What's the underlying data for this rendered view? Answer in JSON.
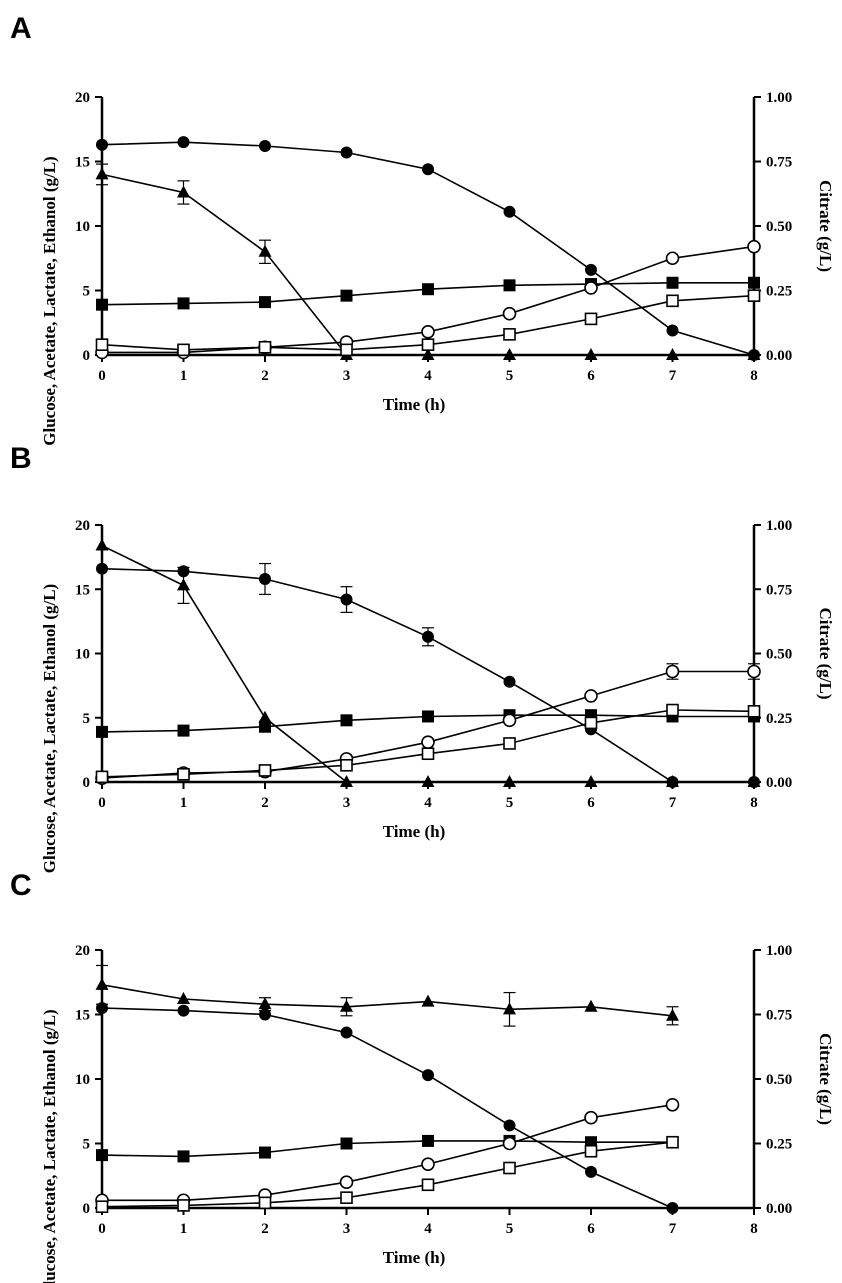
{
  "chart_data": [
    {
      "panel": "A",
      "type": "line",
      "xlabel": "Time (h)",
      "ylabel": "Glucose, Acetate, Lactate, Ethanol (g/L)",
      "y2label": "Citrate (g/L)",
      "xlim": [
        0,
        8
      ],
      "ylim": [
        0,
        20
      ],
      "y2lim": [
        0,
        1
      ],
      "xticks": [
        "0",
        "1",
        "2",
        "3",
        "4",
        "5",
        "6",
        "7",
        "8"
      ],
      "yticks": [
        "0",
        "5",
        "10",
        "15",
        "20"
      ],
      "y2ticks": [
        "0.00",
        "0.25",
        "0.50",
        "0.75",
        "1.00"
      ],
      "series": [
        {
          "marker": "filled-circle",
          "axis": "left",
          "x": [
            0,
            1,
            2,
            3,
            4,
            5,
            6,
            7,
            8
          ],
          "values": [
            16.3,
            16.5,
            16.2,
            15.7,
            14.4,
            11.1,
            6.6,
            1.9,
            0.0
          ],
          "err": [
            0,
            0,
            0,
            0,
            0,
            0,
            0,
            0,
            0
          ]
        },
        {
          "marker": "filled-triangle",
          "axis": "left",
          "x": [
            0,
            1,
            2,
            3,
            4,
            5,
            6,
            7,
            8
          ],
          "values": [
            14.0,
            12.6,
            8.0,
            0.0,
            0.0,
            0.0,
            0.0,
            0.0,
            0.0
          ],
          "err": [
            0.8,
            0.9,
            0.9,
            0,
            0,
            0,
            0,
            0,
            0
          ]
        },
        {
          "marker": "filled-square",
          "axis": "left",
          "x": [
            0,
            1,
            2,
            3,
            4,
            5,
            6,
            7,
            8
          ],
          "values": [
            3.9,
            4.0,
            4.1,
            4.6,
            5.1,
            5.4,
            5.5,
            5.6,
            5.6
          ],
          "err": [
            0,
            0,
            0,
            0,
            0,
            0,
            0,
            0,
            0
          ]
        },
        {
          "marker": "open-circle",
          "axis": "right",
          "x": [
            0,
            1,
            2,
            3,
            4,
            5,
            6,
            7,
            8
          ],
          "values": [
            0.01,
            0.01,
            0.03,
            0.05,
            0.09,
            0.16,
            0.26,
            0.375,
            0.42
          ],
          "err": [
            0,
            0,
            0,
            0,
            0,
            0,
            0,
            0,
            0
          ]
        },
        {
          "marker": "open-square",
          "axis": "right",
          "x": [
            0,
            1,
            2,
            3,
            4,
            5,
            6,
            7,
            8
          ],
          "values": [
            0.04,
            0.02,
            0.03,
            0.02,
            0.04,
            0.08,
            0.14,
            0.21,
            0.23
          ],
          "err": [
            0,
            0,
            0,
            0,
            0,
            0,
            0,
            0,
            0
          ]
        }
      ]
    },
    {
      "panel": "B",
      "type": "line",
      "xlabel": "Time (h)",
      "ylabel": "Glucose, Acetate, Lactate, Ethanol (g/L)",
      "y2label": "Citrate (g/L)",
      "xlim": [
        0,
        8
      ],
      "ylim": [
        0,
        20
      ],
      "y2lim": [
        0,
        1
      ],
      "xticks": [
        "0",
        "1",
        "2",
        "3",
        "4",
        "5",
        "6",
        "7",
        "8"
      ],
      "yticks": [
        "0",
        "5",
        "10",
        "15",
        "20"
      ],
      "y2ticks": [
        "0.00",
        "0.25",
        "0.50",
        "0.75",
        "1.00"
      ],
      "series": [
        {
          "marker": "filled-circle",
          "axis": "left",
          "x": [
            0,
            1,
            2,
            3,
            4,
            5,
            6,
            7,
            8
          ],
          "values": [
            16.6,
            16.4,
            15.8,
            14.2,
            11.3,
            7.8,
            4.1,
            0.0,
            0.0
          ],
          "err": [
            0,
            0,
            1.2,
            1.0,
            0.7,
            0,
            0,
            0,
            0
          ]
        },
        {
          "marker": "filled-triangle",
          "axis": "left",
          "x": [
            0,
            1,
            2,
            3,
            4,
            5,
            6,
            7,
            8
          ],
          "values": [
            18.4,
            15.3,
            5.0,
            0.0,
            0.0,
            0.0,
            0.0,
            0.0,
            0.0
          ],
          "err": [
            0,
            1.4,
            0,
            0,
            0,
            0,
            0,
            0,
            0
          ]
        },
        {
          "marker": "filled-square",
          "axis": "left",
          "x": [
            0,
            1,
            2,
            3,
            4,
            5,
            6,
            7,
            8
          ],
          "values": [
            3.9,
            4.0,
            4.3,
            4.8,
            5.1,
            5.2,
            5.2,
            5.1,
            5.1
          ],
          "err": [
            0,
            0,
            0,
            0,
            0,
            0,
            0,
            0,
            0
          ]
        },
        {
          "marker": "open-circle",
          "axis": "right",
          "x": [
            0,
            1,
            2,
            3,
            4,
            5,
            6,
            7,
            8
          ],
          "values": [
            0.015,
            0.035,
            0.04,
            0.09,
            0.155,
            0.24,
            0.335,
            0.43,
            0.43
          ],
          "err": [
            0,
            0,
            0,
            0,
            0,
            0,
            0,
            0.03,
            0.03
          ]
        },
        {
          "marker": "open-square",
          "axis": "right",
          "x": [
            0,
            1,
            2,
            3,
            4,
            5,
            6,
            7,
            8
          ],
          "values": [
            0.02,
            0.03,
            0.045,
            0.065,
            0.11,
            0.15,
            0.23,
            0.28,
            0.275
          ],
          "err": [
            0,
            0,
            0,
            0,
            0,
            0,
            0,
            0,
            0
          ]
        }
      ]
    },
    {
      "panel": "C",
      "type": "line",
      "xlabel": "Time (h)",
      "ylabel": "Glucose, Acetate, Lactate, Ethanol (g/L)",
      "y2label": "Citrate (g/L)",
      "xlim": [
        0,
        8
      ],
      "ylim": [
        0,
        20
      ],
      "y2lim": [
        0,
        1
      ],
      "xticks": [
        "0",
        "1",
        "2",
        "3",
        "4",
        "5",
        "6",
        "7",
        "8"
      ],
      "yticks": [
        "0",
        "5",
        "10",
        "15",
        "20"
      ],
      "y2ticks": [
        "0.00",
        "0.25",
        "0.50",
        "0.75",
        "1.00"
      ],
      "series": [
        {
          "marker": "filled-circle",
          "axis": "left",
          "x": [
            0,
            1,
            2,
            3,
            4,
            5,
            6,
            7
          ],
          "values": [
            15.5,
            15.3,
            15.0,
            13.6,
            10.3,
            6.4,
            2.8,
            0.0
          ],
          "err": [
            0,
            0,
            0,
            0,
            0,
            0,
            0,
            0
          ]
        },
        {
          "marker": "filled-triangle",
          "axis": "left",
          "x": [
            0,
            1,
            2,
            3,
            4,
            5,
            6,
            7
          ],
          "values": [
            17.3,
            16.2,
            15.8,
            15.6,
            16.0,
            15.4,
            15.6,
            14.9
          ],
          "err": [
            1.5,
            0,
            0.5,
            0.7,
            0,
            1.3,
            0,
            0.7
          ]
        },
        {
          "marker": "filled-square",
          "axis": "left",
          "x": [
            0,
            1,
            2,
            3,
            4,
            5,
            6,
            7
          ],
          "values": [
            4.1,
            4.0,
            4.3,
            5.0,
            5.2,
            5.2,
            5.1,
            5.1
          ],
          "err": [
            0,
            0,
            0,
            0,
            0,
            0,
            0,
            0
          ]
        },
        {
          "marker": "open-circle",
          "axis": "right",
          "x": [
            0,
            1,
            2,
            3,
            4,
            5,
            6,
            7
          ],
          "values": [
            0.03,
            0.03,
            0.05,
            0.1,
            0.17,
            0.25,
            0.35,
            0.4
          ],
          "err": [
            0,
            0,
            0,
            0,
            0,
            0,
            0,
            0
          ]
        },
        {
          "marker": "open-square",
          "axis": "right",
          "x": [
            0,
            1,
            2,
            3,
            4,
            5,
            6,
            7
          ],
          "values": [
            0.005,
            0.01,
            0.02,
            0.04,
            0.09,
            0.155,
            0.22,
            0.255
          ],
          "err": [
            0,
            0,
            0,
            0,
            0,
            0,
            0,
            0
          ]
        }
      ]
    }
  ]
}
